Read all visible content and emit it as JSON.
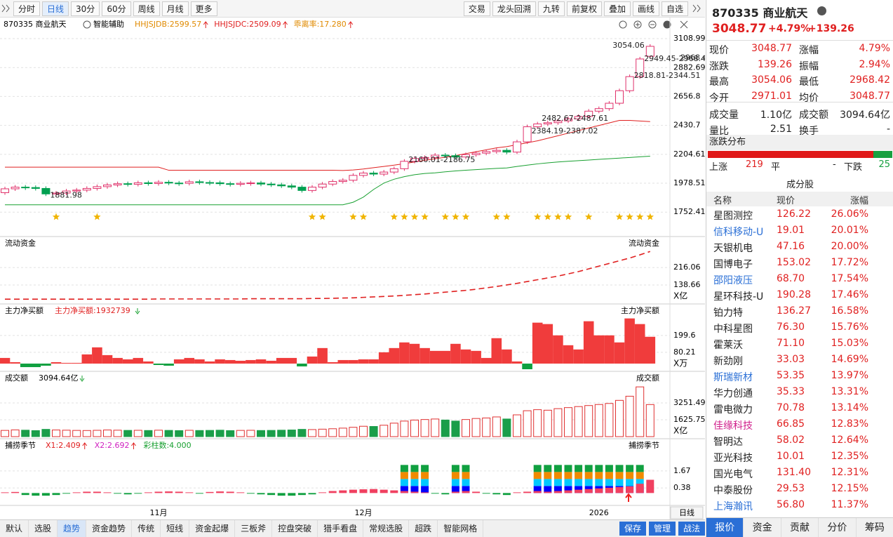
{
  "toolbar": {
    "periods": [
      "分时",
      "日线",
      "30分",
      "60分",
      "周线",
      "月线",
      "更多"
    ],
    "active_period": 1,
    "tools": [
      "交易",
      "龙头回溯",
      "九转",
      "前复权",
      "叠加",
      "画线",
      "自选"
    ]
  },
  "price_panel": {
    "symbol": "870335 商业航天",
    "assist": "智能辅助",
    "indicators": [
      {
        "text": "HHJSJDB:2599.57",
        "color": "#e08a00"
      },
      {
        "text": "HHJSJDC:2509.09",
        "color": "#e02020"
      },
      {
        "text": "乖离率:17.280",
        "color": "#e08a00"
      }
    ],
    "ylim": [
      1655,
      3164
    ],
    "yticks": [
      3108.99,
      2882.69,
      2656.8,
      2430.7,
      2204.61,
      1978.51,
      1752.41
    ],
    "price_marks": [
      2968.42
    ],
    "open": [
      1905,
      1935,
      1948,
      1945,
      1938,
      1895,
      1902,
      1918,
      1925,
      1938,
      1952,
      1965,
      1975,
      1970,
      1982,
      1976,
      1986,
      1980,
      1978,
      1990,
      1984,
      1982,
      1975,
      1970,
      1978,
      1981,
      1972,
      1966,
      1958,
      1948,
      1922,
      1948,
      1972,
      1992,
      2002,
      2040,
      2058,
      2050,
      2066,
      2092,
      2150,
      2172,
      2180,
      2198,
      2194,
      2184,
      2202,
      2214,
      2226,
      2236,
      2222,
      2302,
      2420,
      2442,
      2452,
      2466,
      2482,
      2500,
      2542,
      2562,
      2604,
      2702,
      2812,
      2971.01
    ],
    "close": [
      1935,
      1948,
      1945,
      1938,
      1895,
      1902,
      1918,
      1925,
      1938,
      1952,
      1965,
      1975,
      1970,
      1982,
      1976,
      1986,
      1980,
      1978,
      1990,
      1984,
      1982,
      1975,
      1970,
      1978,
      1981,
      1972,
      1966,
      1958,
      1948,
      1922,
      1948,
      1972,
      1992,
      2002,
      2040,
      2058,
      2050,
      2066,
      2092,
      2150,
      2172,
      2180,
      2198,
      2194,
      2184,
      2202,
      2214,
      2226,
      2236,
      2222,
      2302,
      2420,
      2442,
      2452,
      2466,
      2482,
      2500,
      2542,
      2562,
      2604,
      2702,
      2812,
      2950,
      3048.77
    ],
    "bands": [
      {
        "color": "#e02020",
        "values": [
          2104,
          2104,
          2104,
          2104,
          2104,
          2104,
          2104,
          2104,
          2104,
          2104,
          2104,
          2104,
          2104,
          2104,
          2104,
          2104,
          2080,
          2080,
          2080,
          2080,
          2080,
          2080,
          2080,
          2080,
          2080,
          2080,
          2080,
          2080,
          2080,
          2080,
          2080,
          2080,
          2080,
          2078,
          2082,
          2090,
          2100,
          2110,
          2120,
          2132,
          2145,
          2158,
          2170,
          2182,
          2195,
          2210,
          2225,
          2240,
          2255,
          2265,
          2280,
          2295,
          2310,
          2330,
          2350,
          2370,
          2390,
          2410,
          2430,
          2450,
          2470,
          2470,
          2465,
          2460
        ]
      },
      {
        "color": "#18a030",
        "values": [
          1810,
          1810,
          1810,
          1810,
          1810,
          1810,
          1810,
          1810,
          1810,
          1810,
          1810,
          1810,
          1810,
          1810,
          1810,
          1810,
          1810,
          1810,
          1810,
          1810,
          1810,
          1810,
          1810,
          1810,
          1810,
          1810,
          1810,
          1810,
          1810,
          1810,
          1810,
          1810,
          1810,
          1810,
          1830,
          1870,
          1930,
          1980,
          2010,
          2030,
          2045,
          2055,
          2060,
          2068,
          2075,
          2080,
          2085,
          2090,
          2095,
          2098,
          2110,
          2120,
          2130,
          2138,
          2145,
          2150,
          2155,
          2160,
          2165,
          2170,
          2175,
          2180,
          2185,
          2190
        ]
      }
    ],
    "annotations": [
      {
        "text": "3054.06",
        "index": 63,
        "value": 3054.06
      },
      {
        "text": "2949.45-2968.42",
        "index": 62,
        "value": 2949.45
      },
      {
        "text": "2818.81-2344.51",
        "index": 61,
        "value": 2818.81
      },
      {
        "text": "2482.67-2487.61",
        "index": 52,
        "value": 2482.67
      },
      {
        "text": "2384.19-2387.02",
        "index": 51,
        "value": 2384.19
      },
      {
        "text": "2160.01-2186.75",
        "index": 39,
        "value": 2160.01
      },
      {
        "text": "1881.98",
        "index": 4,
        "value": 1881.98
      }
    ],
    "stars": [
      5,
      9,
      30,
      31,
      34,
      35,
      38,
      39,
      40,
      41,
      43,
      44,
      45,
      48,
      49,
      52,
      53,
      54,
      55,
      57,
      60,
      61,
      62,
      63
    ]
  },
  "flow_panel": {
    "title": "流动资金",
    "unit": "X亿",
    "ylim": [
      58,
      297
    ],
    "yticks": [
      216.06,
      138.66
    ],
    "values": [
      76,
      76,
      76,
      76,
      76,
      76,
      76,
      76,
      76,
      76,
      76,
      76,
      76,
      76,
      76,
      77,
      77,
      77,
      77,
      77,
      77,
      77,
      77,
      77,
      78,
      78,
      78,
      78,
      78,
      78,
      79,
      79,
      80,
      81,
      82,
      84,
      86,
      88,
      90,
      93,
      96,
      99,
      103,
      107,
      111,
      115,
      120,
      126,
      132,
      139,
      146,
      154,
      162,
      170,
      178,
      188,
      198,
      210,
      222,
      234,
      246,
      258,
      272,
      287
    ]
  },
  "net_panel": {
    "title": "主力净买额",
    "legend": "主力净买额:1932739",
    "unit": "X万",
    "ylim": [
      -45,
      338
    ],
    "yticks": [
      199.6,
      80.21
    ],
    "values": [
      40,
      10,
      -25,
      -25,
      -15,
      10,
      5,
      5,
      65,
      115,
      60,
      40,
      30,
      40,
      15,
      -10,
      -15,
      30,
      40,
      30,
      15,
      30,
      25,
      20,
      25,
      30,
      20,
      40,
      40,
      -20,
      50,
      110,
      10,
      25,
      25,
      30,
      30,
      80,
      110,
      150,
      140,
      110,
      90,
      90,
      140,
      100,
      90,
      40,
      180,
      100,
      15,
      -40,
      290,
      280,
      200,
      130,
      100,
      300,
      200,
      200,
      150,
      320,
      280,
      190
    ]
  },
  "volume_panel": {
    "title": "成交额",
    "legend": "3094.64亿",
    "unit": "X亿",
    "ylim": [
      0,
      5216
    ],
    "yticks": [
      3251.49,
      1625.75
    ],
    "values": [
      600,
      650,
      620,
      580,
      700,
      640,
      620,
      600,
      590,
      610,
      640,
      620,
      600,
      610,
      590,
      620,
      600,
      580,
      610,
      590,
      600,
      620,
      580,
      600,
      610,
      590,
      600,
      620,
      640,
      700,
      680,
      720,
      760,
      820,
      900,
      1000,
      980,
      1100,
      1300,
      1500,
      1600,
      1650,
      1700,
      1600,
      1500,
      1650,
      1750,
      1800,
      1900,
      1700,
      2100,
      2500,
      2600,
      2550,
      2700,
      2800,
      2900,
      3000,
      3100,
      3200,
      3500,
      3900,
      4800,
      3094.64
    ]
  },
  "season_panel": {
    "title": "捕捞季节",
    "legends": [
      {
        "text": "X1:2.409",
        "color": "#e02020"
      },
      {
        "text": "X2:2.692",
        "color": "#d020c0"
      },
      {
        "text": "彩柱数:4.000",
        "color": "#18a030"
      }
    ],
    "ylim": [
      -0.83,
      3.2
    ],
    "yticks": [
      1.67,
      0.38
    ],
    "values": [
      0.05,
      0.08,
      -0.15,
      -0.2,
      -0.2,
      -0.15,
      -0.05,
      0.05,
      0.1,
      0.1,
      0.05,
      -0.05,
      -0.1,
      -0.05,
      0.05,
      0.1,
      0.12,
      0.1,
      0.05,
      -0.05,
      0.08,
      0.12,
      0.1,
      0.05,
      -0.05,
      -0.1,
      -0.15,
      -0.2,
      -0.2,
      -0.15,
      -0.1,
      0.05,
      0.15,
      0.2,
      0.25,
      0.28,
      0.3,
      0.25,
      0.2,
      0.15,
      0.1,
      0.05,
      -0.05,
      -0.1,
      0.1,
      0.15,
      0.1,
      -0.05,
      -0.1,
      -0.15,
      0.05,
      0.1,
      0.15,
      0.1,
      0.15,
      0.2,
      0.25,
      0.3,
      0.35,
      0.4,
      0.45,
      0.5,
      0.7,
      1.0
    ],
    "blocks": [
      39,
      40,
      41,
      44,
      45,
      52,
      53,
      54,
      55,
      56,
      57,
      58,
      59,
      60,
      61,
      62
    ]
  },
  "x_axis": {
    "labels": [
      {
        "label": "11月",
        "index": 15
      },
      {
        "label": "12月",
        "index": 35
      },
      {
        "label": "2026",
        "index": 58
      }
    ],
    "period": "日线"
  },
  "bottom_bar": {
    "tabs": [
      "默认",
      "选股",
      "趋势",
      "资金趋势",
      "传统",
      "短线",
      "资金起爆",
      "三板斧",
      "控盘突破",
      "猎手看盘",
      "常规选股",
      "超跌",
      "智能网格"
    ],
    "active_tab": 2,
    "buttons": [
      "保存",
      "管理",
      "战法"
    ]
  },
  "quote": {
    "title": "870335 商业航天",
    "price": "3048.77",
    "pct": "+4.79%",
    "chg": "+139.26",
    "grid": [
      [
        "现价",
        "3048.77",
        "涨幅",
        "4.79%"
      ],
      [
        "涨跌",
        "139.26",
        "振幅",
        "2.94%"
      ],
      [
        "最高",
        "3054.06",
        "最低",
        "2968.42"
      ],
      [
        "今开",
        "2971.01",
        "均价",
        "3048.77"
      ],
      [
        "成交量",
        "1.10亿",
        "成交额",
        "3094.64亿"
      ],
      [
        "量比",
        "2.51",
        "换手",
        "-"
      ]
    ],
    "dist_title": "涨跌分布",
    "up_label": "上涨",
    "up": 219,
    "flat_label": "平",
    "flat": "-",
    "down_label": "下跌",
    "down": 25,
    "members_title": "成分股",
    "columns": [
      "名称",
      "现价",
      "涨幅"
    ],
    "members": [
      {
        "name": "星图测控",
        "price": "126.22",
        "pct": "26.06%"
      },
      {
        "name": "信科移动-U",
        "price": "19.01",
        "pct": "20.01%",
        "color": "#2a6fd6"
      },
      {
        "name": "天银机电",
        "price": "47.16",
        "pct": "20.00%"
      },
      {
        "name": "国博电子",
        "price": "153.02",
        "pct": "17.72%"
      },
      {
        "name": "邵阳液压",
        "price": "68.70",
        "pct": "17.54%",
        "color": "#2a6fd6"
      },
      {
        "name": "星环科技-U",
        "price": "190.28",
        "pct": "17.46%"
      },
      {
        "name": "铂力特",
        "price": "136.27",
        "pct": "16.58%"
      },
      {
        "name": "中科星图",
        "price": "76.30",
        "pct": "15.76%"
      },
      {
        "name": "霍莱沃",
        "price": "71.10",
        "pct": "15.03%"
      },
      {
        "name": "新劲刚",
        "price": "33.03",
        "pct": "14.69%"
      },
      {
        "name": "斯瑞新材",
        "price": "53.35",
        "pct": "13.97%",
        "color": "#2a6fd6"
      },
      {
        "name": "华力创通",
        "price": "35.33",
        "pct": "13.31%"
      },
      {
        "name": "雷电微力",
        "price": "70.78",
        "pct": "13.14%"
      },
      {
        "name": "佳缘科技",
        "price": "66.85",
        "pct": "12.83%",
        "color": "#d0208c"
      },
      {
        "name": "智明达",
        "price": "58.02",
        "pct": "12.64%"
      },
      {
        "name": "亚光科技",
        "price": "10.01",
        "pct": "12.35%"
      },
      {
        "name": "国光电气",
        "price": "131.40",
        "pct": "12.31%"
      },
      {
        "name": "中泰股份",
        "price": "29.53",
        "pct": "12.15%"
      },
      {
        "name": "上海瀚讯",
        "price": "56.80",
        "pct": "11.37%",
        "color": "#2a6fd6"
      }
    ],
    "tabs": [
      "报价",
      "资金",
      "贡献",
      "分价",
      "筹码"
    ],
    "active_tab": 0
  }
}
